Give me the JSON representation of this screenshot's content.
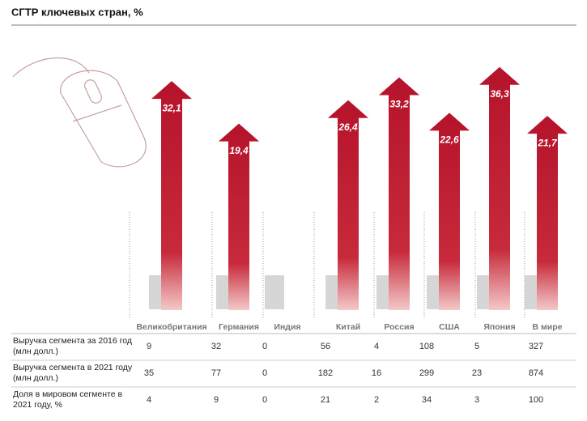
{
  "chart_data": {
    "type": "bar",
    "title": "СГТР ключевых стран, %",
    "categories": [
      "Великобритания",
      "Германия",
      "Индия",
      "Китай",
      "Россия",
      "США",
      "Япония",
      "В мире"
    ],
    "values": [
      32.1,
      19.4,
      null,
      26.4,
      33.2,
      22.6,
      36.3,
      21.7
    ],
    "value_labels": [
      "32,1",
      "19,4",
      null,
      "26,4",
      "33,2",
      "22,6",
      "36,3",
      "21,7"
    ],
    "color": "#c01a2e"
  },
  "table": {
    "rows": [
      {
        "label": "Выручка сегмента за 2016 год (млн долл.)",
        "values": [
          9,
          32,
          0,
          56,
          4,
          108,
          5,
          327
        ]
      },
      {
        "label": "Выручка сегмента в 2021 году (млн долл.)",
        "values": [
          35,
          77,
          0,
          182,
          16,
          299,
          23,
          874
        ]
      },
      {
        "label": "Доля в мировом сегменте в 2021 году, %",
        "values": [
          4,
          9,
          0,
          21,
          2,
          34,
          3,
          100
        ]
      }
    ]
  }
}
